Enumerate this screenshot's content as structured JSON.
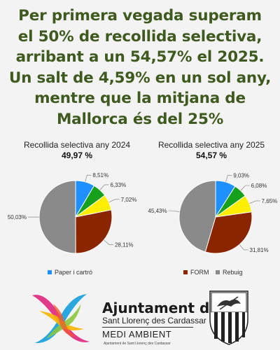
{
  "headline": {
    "lines": [
      "Per primera vegada superam",
      "el 50% de recollida selectiva,",
      "arribant a un 54,57% el 2025.",
      "Un salt de 4,59% en un sol any,",
      "mentre que la mitjana de",
      "Mallorca és del 25%"
    ]
  },
  "chart_data": [
    {
      "type": "pie",
      "title": "Recollida selectiva any 2024",
      "total_label": "49,97 %",
      "slices": [
        {
          "label": "8,51%",
          "value": 8.51,
          "color": "#1e90ff"
        },
        {
          "label": "6,33%",
          "value": 6.33,
          "color": "#16a01c"
        },
        {
          "label": "7,02%",
          "value": 7.02,
          "color": "#ffee00"
        },
        {
          "label": "28,11%",
          "value": 28.11,
          "color": "#8b2500"
        },
        {
          "label": "50,03%",
          "value": 50.03,
          "color": "#8a8a8a"
        }
      ],
      "legend": [
        {
          "name": "Paper i cartró",
          "color": "#1e90ff"
        }
      ]
    },
    {
      "type": "pie",
      "title": "Recollida selectiva any 2025",
      "total_label": "54,57 %",
      "slices": [
        {
          "label": "9,03%",
          "value": 9.03,
          "color": "#1e90ff"
        },
        {
          "label": "6,08%",
          "value": 6.08,
          "color": "#16a01c"
        },
        {
          "label": "7,65%",
          "value": 7.65,
          "color": "#ffee00"
        },
        {
          "label": "31,81%",
          "value": 31.81,
          "color": "#8b2500"
        },
        {
          "label": "45,43%",
          "value": 45.43,
          "color": "#8a8a8a"
        }
      ],
      "legend": [
        {
          "name": "FORM",
          "color": "#8b2500"
        },
        {
          "name": "Rebuig",
          "color": "#8a8a8a"
        }
      ]
    }
  ],
  "footer": {
    "org_name": "Ajuntament de",
    "town": "Sant Llorenç des Cardassar",
    "department": "MEDI AMBIENT",
    "small_text": "Ajuntament de Sant Llorenç des Cardassar",
    "logo_icon": "colorful-x-logo-icon",
    "crest_icon": "municipal-coat-of-arms-icon"
  }
}
